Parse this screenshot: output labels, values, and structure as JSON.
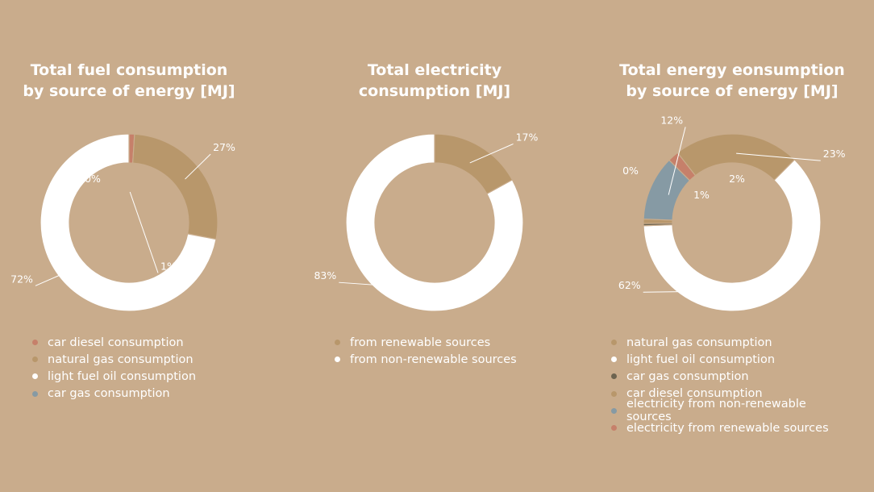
{
  "colors": {
    "background": "#c9ac8c",
    "natural_gas": "#b8976b",
    "light_fuel_oil": "#ffffff",
    "car_diesel": "#c6806a",
    "car_gas": "#869aa4",
    "car_gas_dark": "#6d6450",
    "renewable": "#b8976b",
    "elec_non_renewable": "#869aa4",
    "elec_renewable": "#c6806a"
  },
  "chart_data": [
    {
      "type": "pie",
      "title_lines": [
        "Total fuel consumption",
        "by source of energy [MJ]"
      ],
      "slices": [
        {
          "label": "car diesel consumption",
          "pct_label": "1%",
          "value": 1,
          "color": "#c6806a"
        },
        {
          "label": "natural gas consumption",
          "pct_label": "27%",
          "value": 27,
          "color": "#b8976b"
        },
        {
          "label": "light fuel oil consumption",
          "pct_label": "72%",
          "value": 72,
          "color": "#ffffff"
        },
        {
          "label": "car gas consumption",
          "pct_label": "0%",
          "value": 0,
          "color": "#869aa4"
        }
      ],
      "legend": [
        {
          "label": "car diesel consumption",
          "color": "#c6806a"
        },
        {
          "label": "natural gas consumption",
          "color": "#b8976b"
        },
        {
          "label": "light fuel oil consumption",
          "color": "#ffffff"
        },
        {
          "label": "car gas consumption",
          "color": "#869aa4"
        }
      ]
    },
    {
      "type": "pie",
      "title_lines": [
        "Total electricity",
        "consumption [MJ]"
      ],
      "slices": [
        {
          "label": "from renewable sources",
          "pct_label": "17%",
          "value": 17,
          "color": "#b8976b"
        },
        {
          "label": "from non-renewable sources",
          "pct_label": "83%",
          "value": 83,
          "color": "#ffffff"
        }
      ],
      "legend": [
        {
          "label": "from renewable sources",
          "color": "#b8976b"
        },
        {
          "label": "from non-renewable sources",
          "color": "#ffffff"
        }
      ]
    },
    {
      "type": "pie",
      "title_lines": [
        "Total energy eonsumption",
        "by source of energy [MJ]"
      ],
      "slices": [
        {
          "label": "natural gas consumption",
          "pct_label": "23%",
          "value": 23,
          "color": "#b8976b"
        },
        {
          "label": "light fuel oil consumption",
          "pct_label": "62%",
          "value": 62,
          "color": "#ffffff"
        },
        {
          "label": "car gas consumption",
          "pct_label": "0%",
          "value": 0.4,
          "color": "#6d6450"
        },
        {
          "label": "car diesel consumption",
          "pct_label": "1%",
          "value": 0.8,
          "color": "#b8976b"
        },
        {
          "label": "electricity from non-renewable sources",
          "pct_label": "12%",
          "value": 11.8,
          "color": "#869aa4"
        },
        {
          "label": "electricity from renewable sources",
          "pct_label": "2%",
          "value": 2,
          "color": "#c6806a"
        }
      ],
      "legend": [
        {
          "label": "natural gas consumption",
          "color": "#b8976b"
        },
        {
          "label": "light fuel oil consumption",
          "color": "#ffffff"
        },
        {
          "label": "car gas consumption",
          "color": "#6d6450"
        },
        {
          "label": "car diesel consumption",
          "color": "#b8976b"
        },
        {
          "label": "electricity from non-renewable sources",
          "color": "#869aa4"
        },
        {
          "label": "electricity from renewable sources",
          "color": "#c6806a"
        }
      ]
    }
  ]
}
